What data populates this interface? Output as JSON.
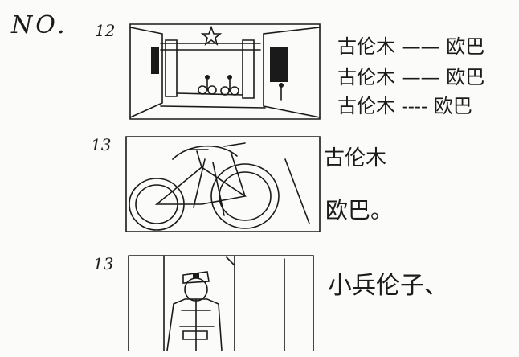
{
  "header": {
    "number_label": "NO."
  },
  "panels": [
    {
      "shot_number": "12",
      "dialogue": [
        {
          "speaker": "古伦木",
          "separator": "——",
          "addressee": "欧巴"
        },
        {
          "speaker": "古伦木",
          "separator": "——",
          "addressee": "欧巴"
        },
        {
          "speaker": "古伦木",
          "separator": "----",
          "addressee": "欧巴"
        }
      ]
    },
    {
      "shot_number": "13",
      "speaker_a": "古伦木",
      "speaker_b": "欧巴。"
    },
    {
      "shot_number": "13",
      "speaker_a": "小兵伦子、"
    }
  ]
}
